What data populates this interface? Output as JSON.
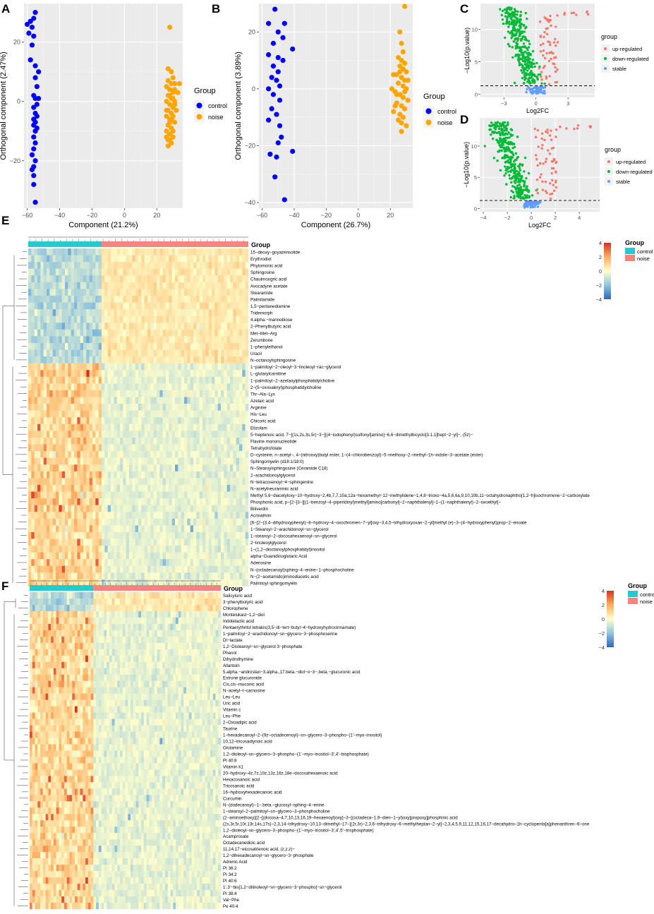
{
  "panels": {
    "A": {
      "letter": "A",
      "chart_data": {
        "type": "scatter",
        "xlabel": "Component (21.2%)",
        "ylabel": "Orthogonal component (2.47%)",
        "xlim": [
          -62,
          36
        ],
        "ylim": [
          -36,
          33
        ],
        "xticks": [
          -60,
          -40,
          -20,
          0,
          20
        ],
        "yticks": [
          -20,
          0,
          20
        ],
        "legend_title": "Group",
        "series": [
          {
            "name": "control",
            "color": "#0000ff",
            "points": [
              [
                -55,
                30
              ],
              [
                -56,
                28
              ],
              [
                -58,
                27
              ],
              [
                -60,
                26
              ],
              [
                -57,
                25
              ],
              [
                -59,
                23
              ],
              [
                -56,
                22
              ],
              [
                -57,
                19
              ],
              [
                -58,
                14
              ],
              [
                -55,
                12
              ],
              [
                -53,
                10
              ],
              [
                -55,
                8
              ],
              [
                -54,
                5
              ],
              [
                -56,
                2
              ],
              [
                -55,
                1
              ],
              [
                -53,
                1
              ],
              [
                -54,
                -1
              ],
              [
                -56,
                -2
              ],
              [
                -55,
                -4
              ],
              [
                -54,
                -5
              ],
              [
                -56,
                -6
              ],
              [
                -55,
                -7
              ],
              [
                -56,
                -8
              ],
              [
                -54,
                -9
              ],
              [
                -55,
                -10
              ],
              [
                -56,
                -12
              ],
              [
                -55,
                -14
              ],
              [
                -56,
                -16
              ],
              [
                -57,
                -18
              ],
              [
                -55,
                -20
              ],
              [
                -56,
                -22
              ],
              [
                -57,
                -23
              ],
              [
                -56,
                -25
              ],
              [
                -56,
                -28
              ],
              [
                -55,
                -34
              ]
            ]
          },
          {
            "name": "noise",
            "color": "#ffa500",
            "points": [
              [
                28,
                25
              ],
              [
                27,
                11
              ],
              [
                29,
                10
              ],
              [
                30,
                8
              ],
              [
                31,
                6
              ],
              [
                26,
                5
              ],
              [
                28,
                4
              ],
              [
                30,
                3
              ],
              [
                27,
                2
              ],
              [
                29,
                1
              ],
              [
                31,
                0
              ],
              [
                26,
                0
              ],
              [
                28,
                -1
              ],
              [
                30,
                -2
              ],
              [
                27,
                -3
              ],
              [
                29,
                -4
              ],
              [
                26,
                -5
              ],
              [
                28,
                -6
              ],
              [
                31,
                -7
              ],
              [
                27,
                -8
              ],
              [
                29,
                -9
              ],
              [
                26,
                -10
              ],
              [
                28,
                -11
              ],
              [
                30,
                -12
              ],
              [
                27,
                -13
              ],
              [
                29,
                -14
              ],
              [
                28,
                -7
              ],
              [
                30,
                -5
              ],
              [
                26,
                -3
              ],
              [
                31,
                -1
              ],
              [
                27,
                7
              ],
              [
                29,
                6
              ],
              [
                31,
                4
              ],
              [
                28,
                2
              ],
              [
                30,
                -10
              ],
              [
                26,
                -12
              ],
              [
                28,
                -13
              ],
              [
                32,
                -3
              ],
              [
                29,
                -6
              ],
              [
                30,
                1
              ],
              [
                34,
                6
              ],
              [
                33,
                3
              ],
              [
                27,
                -15
              ]
            ]
          }
        ]
      }
    },
    "B": {
      "letter": "B",
      "chart_data": {
        "type": "scatter",
        "xlabel": "Component (26.7%)",
        "ylabel": "Orthogonal component (3.89%)",
        "xlim": [
          -62,
          34
        ],
        "ylim": [
          -42,
          30
        ],
        "xticks": [
          -60,
          -40,
          -20,
          0,
          20
        ],
        "yticks": [
          -40,
          -20,
          0,
          20
        ],
        "legend_title": "Group",
        "series": [
          {
            "name": "control",
            "color": "#0000ff",
            "points": [
              [
                -52,
                28
              ],
              [
                -56,
                23
              ],
              [
                -46,
                23
              ],
              [
                -50,
                20
              ],
              [
                -47,
                18
              ],
              [
                -53,
                16
              ],
              [
                -41,
                14
              ],
              [
                -56,
                12
              ],
              [
                -50,
                11
              ],
              [
                -47,
                10
              ],
              [
                -53,
                8
              ],
              [
                -50,
                6
              ],
              [
                -54,
                4
              ],
              [
                -51,
                3
              ],
              [
                -49,
                1
              ],
              [
                -56,
                0
              ],
              [
                -53,
                -2
              ],
              [
                -49,
                -4
              ],
              [
                -54,
                -7
              ],
              [
                -51,
                -9
              ],
              [
                -56,
                -11
              ],
              [
                -49,
                -13
              ],
              [
                -48,
                -17
              ],
              [
                -50,
                -19
              ],
              [
                -41,
                -22
              ],
              [
                -55,
                -23
              ],
              [
                -51,
                -24
              ],
              [
                -52,
                -31
              ],
              [
                -46,
                -39
              ]
            ]
          },
          {
            "name": "noise",
            "color": "#ffa500",
            "points": [
              [
                29,
                29
              ],
              [
                26,
                20
              ],
              [
                27,
                16
              ],
              [
                28,
                13
              ],
              [
                25,
                11
              ],
              [
                27,
                10
              ],
              [
                29,
                9
              ],
              [
                26,
                8
              ],
              [
                28,
                7
              ],
              [
                30,
                6
              ],
              [
                24,
                5
              ],
              [
                27,
                4
              ],
              [
                29,
                3
              ],
              [
                25,
                2
              ],
              [
                28,
                1
              ],
              [
                30,
                0
              ],
              [
                23,
                -1
              ],
              [
                26,
                -2
              ],
              [
                28,
                -3
              ],
              [
                31,
                -4
              ],
              [
                24,
                -5
              ],
              [
                27,
                -6
              ],
              [
                29,
                -7
              ],
              [
                22,
                -8
              ],
              [
                26,
                -9
              ],
              [
                28,
                -10
              ],
              [
                25,
                -11
              ],
              [
                27,
                -12
              ],
              [
                30,
                -13
              ],
              [
                27,
                -15
              ],
              [
                21,
                0
              ],
              [
                22,
                5
              ],
              [
                31,
                3
              ],
              [
                24,
                -2
              ],
              [
                26,
                6
              ],
              [
                23,
                -6
              ],
              [
                29,
                -1
              ]
            ]
          }
        ]
      }
    },
    "C": {
      "letter": "C",
      "chart_data": {
        "type": "scatter",
        "xlabel": "Log2FC",
        "ylabel": "−Log10(p.value)",
        "xlim": [
          -5.2,
          5.5
        ],
        "ylim": [
          -0.5,
          14
        ],
        "xticks": [
          -3,
          0,
          3
        ],
        "yticks": [
          0,
          5,
          10
        ],
        "threshold_y": 1.3,
        "legend_title": "group",
        "series": [
          {
            "name": "up-regulated",
            "color": "#f8766d"
          },
          {
            "name": "down-regulated",
            "color": "#00ba38"
          },
          {
            "name": "stable",
            "color": "#619cff"
          }
        ]
      }
    },
    "D": {
      "letter": "D",
      "chart_data": {
        "type": "scatter",
        "xlabel": "Log2FC",
        "ylabel": "−Log10(p.value)",
        "xlim": [
          -4.3,
          5.7
        ],
        "ylim": [
          -0.5,
          14.5
        ],
        "xticks": [
          -4,
          -2,
          0,
          2,
          4
        ],
        "yticks": [
          0,
          5,
          10
        ],
        "threshold_y": 1.3,
        "legend_title": "group",
        "series": [
          {
            "name": "up-regulated",
            "color": "#f8766d"
          },
          {
            "name": "down-regulated",
            "color": "#00ba38"
          },
          {
            "name": "stable",
            "color": "#619cff"
          }
        ]
      }
    },
    "E": {
      "letter": "E",
      "chart_data": {
        "type": "heatmap",
        "col_annotation_title": "Group",
        "groups": [
          {
            "name": "control",
            "color": "#23cbd1",
            "n": 24
          },
          {
            "name": "noise",
            "color": "#f4847c",
            "n": 48
          }
        ],
        "scale_title": "Group",
        "scale_ticks": [
          4,
          2,
          0,
          -2,
          -4
        ],
        "up_block": 17,
        "rows": [
          "15−deoxy−goyazensolide",
          "Erythrodiol",
          "Phytomonic acid",
          "Sphingosine",
          "Chaulmoogric acid",
          "Avocadyne acetate",
          "Stearamide",
          "Palmitamide",
          "1,5−pentanediamine",
          "Tridemorph",
          "4.alpha.−mannobiose",
          "2−Phenylbutyric acid",
          "Met−Met−Arg",
          "Zerumbone",
          "1−phenylethanol",
          "Uracil",
          "N−octanoylsphingosine",
          "1−palmitoyl−2−oleoyl−3−linoleoyl−rac−glycerol",
          "L−glutarylcarnitine",
          "1−palmitoyl−2−azelaoylphosphatidylcholine",
          "2−(5−oxovaleryl)phosphatidylcholine",
          "Thr−Ala−Lys",
          "Azelaic acid",
          "Arginine",
          "His−Leu",
          "Chicoric acid",
          "Etizolam",
          "5−heptenoic acid, 7−[(1s,2s,3s,5r)−3−[[(4−iodophenyl)sulfonyl]amino]−6,6−dimethylbicyclo[3.1.1]hept−2−yl]−, (5z)−",
          "Flavine mononucleotide",
          "Tetrahydrofolate",
          "D−cysteine, n−acetyl−, 4−(nitrooxy)butyl ester, 1−(4−chlorobenzoyl)−5−methoxy−2−methyl−1h−indole−3−acetate (ester)",
          "Sphingomyelin (d18:1/18:0)",
          "N−Stearoylsphingosine (Ceramide C18)",
          "2−arachidonoylglycerol",
          "N−tetracosenoyl−4−sphingenine",
          "N−acetylneuraminic acid",
          "Methyl 5,6−diacetyloxy−10−hydroxy−2,4b,7,7,10a,12a−hexamethyl−12−methylidene−1,4,8−trioxo−4a,5,6,6a,9,10,10b,11−octahydronaphtho[1,2−h]isochromene−2−carboxylate",
          "Phosphonic acid, p−[2−[3−[[(1−benzoyl−4−piperidinyl)methyl]amino]carbonyl]−2−naphthalenyl]−1−(1−naphthalenyl)−2−oxoethyl]−",
          "Biliverdin",
          "Acrinathrin",
          "[6−[2−(3,4−dihydroxyphenyl)−8−hydroxy−4−oxochromen−7−yl]oxy−3,4,5−trihydroxyoxan−2−yl]methyl (e)−3−(4−hydroxyphenyl)prop−2−enoate",
          "1−Stearoyl−2−arachidonoyl−sn−glycerol",
          "1−stearoyl−2−docosahexaenoyl−sn−glycerol",
          "2−linoleoylglycerol",
          "1−(1,2−dioctanoylphosphatidyl)inositol",
          "alpha−Guanidinoglutaric Acid",
          "Adenosine",
          "N−(octadecanoyl)sphing−4−enine−1−phosphocholine",
          "N−(2−acetamido)iminodiacetic acid",
          "Palmitoyl sphingomyelin"
        ]
      }
    },
    "F": {
      "letter": "F",
      "chart_data": {
        "type": "heatmap",
        "col_annotation_title": "Group",
        "groups": [
          {
            "name": "control",
            "color": "#23cbd1",
            "n": 24
          },
          {
            "name": "noise",
            "color": "#f4847c",
            "n": 48
          }
        ],
        "scale_title": "Group",
        "scale_ticks": [
          4,
          2,
          0,
          -2,
          -4
        ],
        "up_block": 3,
        "rows": [
          "Salicyluric acid",
          "3−phenylbutyric acid",
          "Chlorophene",
          "Montelukast−1,2−diol",
          "Indolelactic acid",
          "Pentaerythritol tetrakis(3,5−di−tert−butyl−4−hydroxyhydrocinnamate)",
          "1−palmitoyl−2−arachidonoyl−sn−glycero−3−phosphoserine",
          "Dl−lactate",
          "1,2−Distearoyl−sn−glycerol 3−phosphate",
          "Phenol",
          "Dihydrothymine",
          "Allantoin",
          "5.alpha.−androstan−3.alpha.,17.beta.−diol−o−3−.beta.−glucuronic acid",
          "Estrone glucuronide",
          "Cis,cis−muconic acid",
          "N−acetyl−l−carnosine",
          "Leu−Leu",
          "Uric acid",
          "Vitamin c",
          "Leu−Phe",
          "2−Oxoadipic acid",
          "Taurine",
          "1−hexadecanoyl−2−(9z−octadecenoyl)−sn−glycero−3−phospho−(1'−myo−inositol)",
          "10,12−tricosadiynoic acid",
          "Glutamine",
          "1,2−dioleoyl−sn−glycero−3−phospho−(1'−myo−inositol−3',4'−bisphosphate)",
          "PI 40:8",
          "Vitamin k1",
          "20−hydroxy−4z,7z,10z,13z,16z,18e−docosahexaenoic acid",
          "Hexacosanoic acid",
          "Tricosanoic acid",
          "16−hydroxyhexadecanoic acid",
          "Curcumin",
          "N−(dodecanoyl)−1−.beta.−glucosyl−sphing−4−enine",
          "1−stearoyl−2−palmitoyl−sn−glycero−3−phosphocholine",
          "(2−aminoethoxy)[2−[(docosa−4,7,10,13,16,19−hexaenoyl)oxy]−3−[(octadeca−1,9−dien−1−yl)oxy]propoxy]phosphinic acid",
          "(2s,3r,5r,10r,13r,14s,17s)−2,3,14−trihydroxy−10,13−dimethyl−17−[(2r,3r)−2,3,6−trihydroxy−6−methylheptan−2−yl]−2,3,4,5,9,11,12,15,16,17−decahydro−1h−cyclopenta[a]phenanthren−6−one",
          "1,2−dioleoyl−sn−glycero−3−phospho−(1'−myo−inositol−3',4',5'−trisphosphate)",
          "Acamprosate",
          "Octadecanedioic acid",
          "11,14,17−eicosatrienoic acid, (z,z,z)−",
          "1,2−dihexadecanoyl−sn−glycero−3−phosphate",
          "Adrenic Acid",
          "PI 36:2",
          "PI 34:2",
          "PI 40:6",
          "1',3'−bis[1,2−dilinoleoyl−sn−glycero−3−phospho]−sn−glycerol",
          "PI 38:4",
          "Val−Phe",
          "Pe 40:4"
        ]
      }
    }
  }
}
